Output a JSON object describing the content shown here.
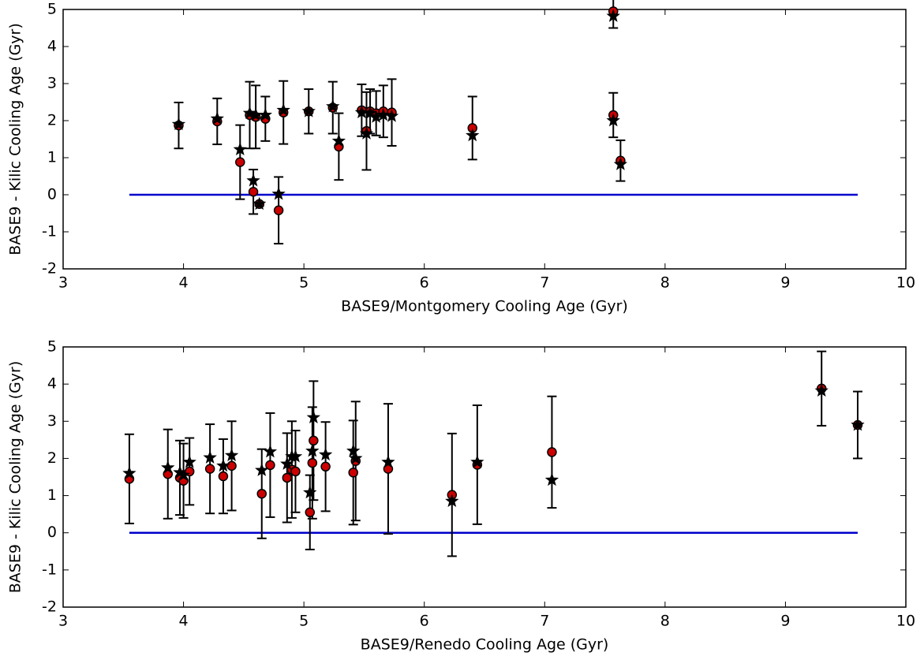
{
  "chart_data": [
    {
      "type": "scatter",
      "xlabel": "BASE9/Montgomery Cooling Age (Gyr)",
      "ylabel": "BASE9 - Kilic Cooling Age (Gyr)",
      "xlim": [
        3,
        10
      ],
      "ylim": [
        -2,
        5
      ],
      "xticks": [
        3,
        4,
        5,
        6,
        7,
        8,
        9,
        10
      ],
      "yticks": [
        -2,
        -1,
        0,
        1,
        2,
        3,
        4,
        5
      ],
      "x": [
        3.96,
        4.28,
        4.47,
        4.55,
        4.58,
        4.6,
        4.63,
        4.68,
        4.79,
        4.83,
        5.04,
        5.24,
        5.29,
        5.48,
        5.52,
        5.55,
        5.6,
        5.66,
        5.73,
        6.4,
        7.57,
        7.57,
        7.63
      ],
      "series": [
        {
          "marker": "circle",
          "color": "#cc0000",
          "values": [
            1.87,
            1.98,
            0.88,
            2.15,
            0.08,
            2.1,
            -0.25,
            2.05,
            -0.42,
            2.22,
            2.25,
            2.35,
            1.3,
            2.28,
            1.72,
            2.25,
            2.2,
            2.25,
            2.22,
            1.8,
            4.95,
            2.15,
            0.92
          ],
          "errors": [
            0.62,
            0.62,
            1.0,
            0.9,
            0.6,
            0.85,
            0.05,
            0.6,
            0.9,
            0.85,
            0.6,
            0.7,
            0.9,
            0.7,
            1.05,
            0.6,
            0.6,
            0.7,
            0.9,
            0.85,
            0.45,
            0.6,
            0.55
          ]
        },
        {
          "marker": "star",
          "color": "#000000",
          "values": [
            1.9,
            2.05,
            1.22,
            2.2,
            0.38,
            2.15,
            -0.25,
            2.15,
            0.02,
            2.28,
            2.25,
            2.38,
            1.45,
            2.22,
            1.65,
            2.2,
            2.1,
            2.15,
            2.12,
            1.6,
            4.82,
            2.0,
            0.82
          ]
        }
      ],
      "hline": {
        "value": 0,
        "xrange": [
          3.55,
          9.6
        ],
        "color": "#0000cc"
      }
    },
    {
      "type": "scatter",
      "xlabel": "BASE9/Renedo Cooling Age (Gyr)",
      "ylabel": "BASE9 - Kilic Cooling Age (Gyr)",
      "xlim": [
        3,
        10
      ],
      "ylim": [
        -2,
        5
      ],
      "xticks": [
        3,
        4,
        5,
        6,
        7,
        8,
        9,
        10
      ],
      "yticks": [
        -2,
        -1,
        0,
        1,
        2,
        3,
        4,
        5
      ],
      "x": [
        3.55,
        3.87,
        3.97,
        4.0,
        4.05,
        4.22,
        4.33,
        4.4,
        4.65,
        4.72,
        4.86,
        4.9,
        4.93,
        5.05,
        5.07,
        5.08,
        5.18,
        5.41,
        5.43,
        5.7,
        6.23,
        6.44,
        7.06,
        9.3,
        9.6
      ],
      "series": [
        {
          "marker": "circle",
          "color": "#cc0000",
          "values": [
            1.45,
            1.58,
            1.48,
            1.4,
            1.65,
            1.72,
            1.52,
            1.8,
            1.05,
            1.82,
            1.48,
            1.7,
            1.65,
            0.55,
            1.88,
            2.48,
            1.78,
            1.62,
            1.93,
            1.72,
            1.02,
            1.83,
            2.17,
            3.88,
            2.9
          ],
          "errors": [
            1.2,
            1.2,
            1.0,
            1.0,
            0.9,
            1.2,
            1.0,
            1.2,
            1.2,
            1.4,
            1.2,
            1.3,
            1.1,
            1.0,
            1.5,
            1.6,
            1.2,
            1.4,
            1.6,
            1.75,
            1.65,
            1.6,
            1.5,
            1.0,
            0.9
          ]
        },
        {
          "marker": "star",
          "color": "#000000",
          "values": [
            1.6,
            1.75,
            1.62,
            1.55,
            1.9,
            2.02,
            1.8,
            2.08,
            1.68,
            2.18,
            1.85,
            2.05,
            2.05,
            1.08,
            2.2,
            3.1,
            2.1,
            2.2,
            2.0,
            1.9,
            0.85,
            1.9,
            1.42,
            3.82,
            2.9
          ]
        }
      ],
      "hline": {
        "value": 0,
        "xrange": [
          3.55,
          9.6
        ],
        "color": "#0000cc"
      }
    }
  ]
}
